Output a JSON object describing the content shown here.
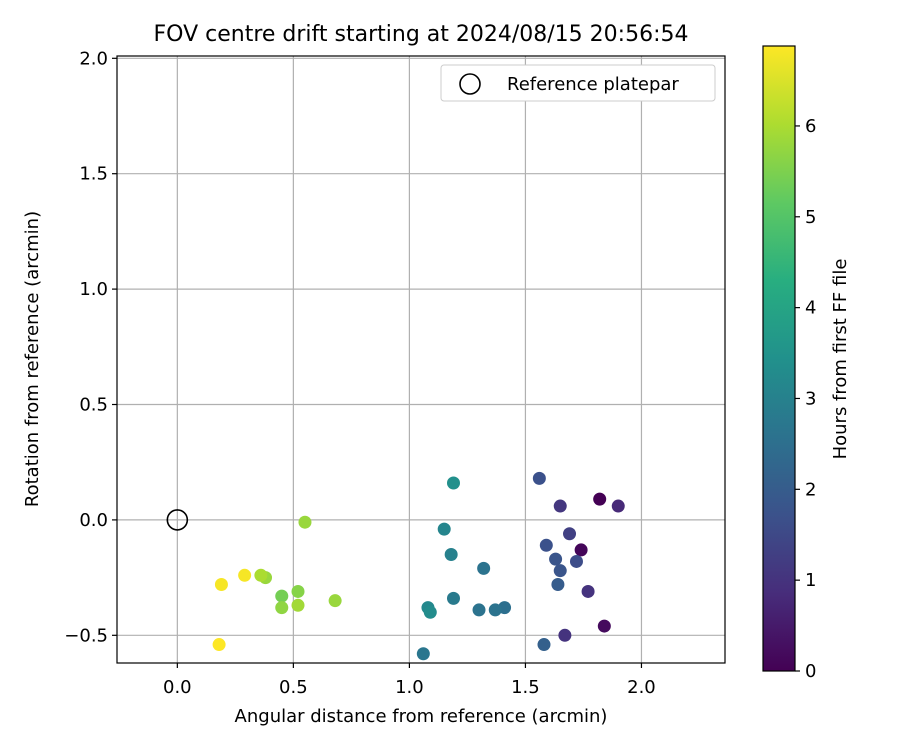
{
  "chart_data": {
    "type": "scatter",
    "title": "FOV centre drift starting at 2024/08/15 20:56:54",
    "xlabel": "Angular distance from reference (arcmin)",
    "ylabel": "Rotation from reference (arcmin)",
    "xlim": [
      -0.26,
      2.36
    ],
    "ylim": [
      -0.62,
      2.01
    ],
    "xticks": [
      {
        "value": 0.0,
        "label": "0.0"
      },
      {
        "value": 0.5,
        "label": "0.5"
      },
      {
        "value": 1.0,
        "label": "1.0"
      },
      {
        "value": 1.5,
        "label": "1.5"
      },
      {
        "value": 2.0,
        "label": "2.0"
      }
    ],
    "yticks": [
      {
        "value": -0.5,
        "label": "−0.5"
      },
      {
        "value": 0.0,
        "label": "0.0"
      },
      {
        "value": 0.5,
        "label": "0.5"
      },
      {
        "value": 1.0,
        "label": "1.0"
      },
      {
        "value": 1.5,
        "label": "1.5"
      },
      {
        "value": 2.0,
        "label": "2.0"
      }
    ],
    "grid": true,
    "legend": {
      "position": "top-right",
      "entries": [
        "Reference platepar"
      ]
    },
    "reference_point": {
      "x": 0.0,
      "y": 0.0
    },
    "colorbar": {
      "label": "Hours from first FF file",
      "colormap": "viridis",
      "range": [
        0,
        6.88
      ],
      "ticks": [
        {
          "value": 0,
          "label": "0"
        },
        {
          "value": 1,
          "label": "1"
        },
        {
          "value": 2,
          "label": "2"
        },
        {
          "value": 3,
          "label": "3"
        },
        {
          "value": 4,
          "label": "4"
        },
        {
          "value": 5,
          "label": "5"
        },
        {
          "value": 6,
          "label": "6"
        }
      ]
    },
    "points": [
      {
        "x": 1.82,
        "y": 0.09,
        "c": 0.0
      },
      {
        "x": 1.74,
        "y": -0.13,
        "c": 0.1
      },
      {
        "x": 1.84,
        "y": -0.46,
        "c": 0.2
      },
      {
        "x": 1.9,
        "y": 0.06,
        "c": 0.8
      },
      {
        "x": 1.77,
        "y": -0.31,
        "c": 1.0
      },
      {
        "x": 1.67,
        "y": -0.5,
        "c": 1.0
      },
      {
        "x": 1.65,
        "y": 0.06,
        "c": 1.1
      },
      {
        "x": 1.69,
        "y": -0.06,
        "c": 1.3
      },
      {
        "x": 1.72,
        "y": -0.18,
        "c": 1.6
      },
      {
        "x": 1.59,
        "y": -0.11,
        "c": 1.7
      },
      {
        "x": 1.56,
        "y": 0.18,
        "c": 1.7
      },
      {
        "x": 1.63,
        "y": -0.17,
        "c": 1.8
      },
      {
        "x": 1.65,
        "y": -0.22,
        "c": 1.8
      },
      {
        "x": 1.64,
        "y": -0.28,
        "c": 2.0
      },
      {
        "x": 1.58,
        "y": -0.54,
        "c": 2.1
      },
      {
        "x": 1.41,
        "y": -0.38,
        "c": 2.5
      },
      {
        "x": 1.37,
        "y": -0.39,
        "c": 2.6
      },
      {
        "x": 1.3,
        "y": -0.39,
        "c": 2.6
      },
      {
        "x": 1.32,
        "y": -0.21,
        "c": 2.6
      },
      {
        "x": 1.06,
        "y": -0.58,
        "c": 2.7
      },
      {
        "x": 1.19,
        "y": -0.34,
        "c": 2.8
      },
      {
        "x": 1.18,
        "y": -0.15,
        "c": 3.0
      },
      {
        "x": 1.15,
        "y": -0.04,
        "c": 3.1
      },
      {
        "x": 1.08,
        "y": -0.38,
        "c": 3.2
      },
      {
        "x": 1.09,
        "y": -0.4,
        "c": 3.3
      },
      {
        "x": 1.19,
        "y": 0.16,
        "c": 3.4
      },
      {
        "x": 0.55,
        "y": -0.01,
        "c": 5.8
      },
      {
        "x": 0.68,
        "y": -0.35,
        "c": 5.8
      },
      {
        "x": 0.52,
        "y": -0.31,
        "c": 5.6
      },
      {
        "x": 0.52,
        "y": -0.37,
        "c": 5.9
      },
      {
        "x": 0.45,
        "y": -0.33,
        "c": 5.4
      },
      {
        "x": 0.45,
        "y": -0.38,
        "c": 5.7
      },
      {
        "x": 0.38,
        "y": -0.25,
        "c": 5.8
      },
      {
        "x": 0.36,
        "y": -0.24,
        "c": 6.0
      },
      {
        "x": 0.29,
        "y": -0.24,
        "c": 6.8
      },
      {
        "x": 0.19,
        "y": -0.28,
        "c": 6.8
      },
      {
        "x": 0.18,
        "y": -0.54,
        "c": 6.88
      }
    ]
  }
}
